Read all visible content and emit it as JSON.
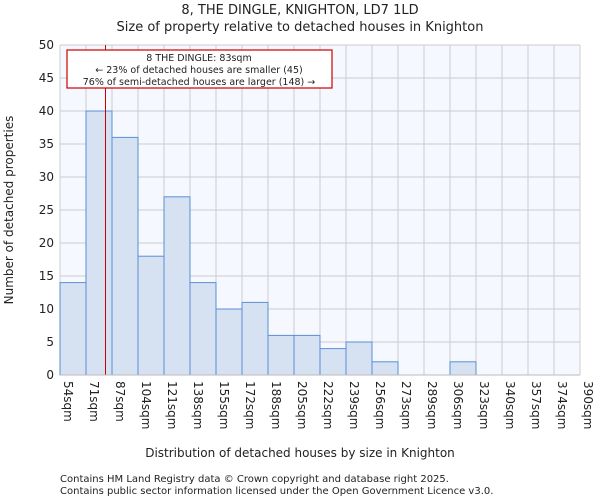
{
  "chart_data": {
    "type": "bar",
    "title": "8, THE DINGLE, KNIGHTON, LD7 1LD",
    "subtitle": "Size of property relative to detached houses in Knighton",
    "xlabel": "Distribution of detached houses by size in Knighton",
    "ylabel": "Number of detached properties",
    "ylim": [
      0,
      50
    ],
    "yticks": [
      0,
      5,
      10,
      15,
      20,
      25,
      30,
      35,
      40,
      45,
      50
    ],
    "bin_edges": [
      54,
      71,
      87,
      104,
      121,
      138,
      155,
      172,
      188,
      205,
      222,
      239,
      256,
      273,
      289,
      306,
      323,
      340,
      357,
      374,
      390
    ],
    "tick_labels": [
      "54sqm",
      "71sqm",
      "87sqm",
      "104sqm",
      "121sqm",
      "138sqm",
      "155sqm",
      "172sqm",
      "188sqm",
      "205sqm",
      "222sqm",
      "239sqm",
      "256sqm",
      "273sqm",
      "289sqm",
      "306sqm",
      "323sqm",
      "340sqm",
      "357sqm",
      "374sqm",
      "390sqm"
    ],
    "values": [
      14,
      40,
      36,
      18,
      27,
      14,
      10,
      11,
      6,
      6,
      4,
      5,
      2,
      0,
      0,
      2,
      0,
      0,
      0,
      0
    ],
    "grid": true,
    "marker": {
      "value": 83,
      "color": "#cc0000"
    },
    "annotation": {
      "line1": "8 THE DINGLE: 83sqm",
      "line2": "← 23% of detached houses are smaller (45)",
      "line3": "76% of semi-detached houses are larger (148) →"
    },
    "colors": {
      "bar_fill": "#d6e1f2",
      "bar_stroke": "#5b8fd6",
      "plot_bg": "#f5f8fe",
      "grid": "#cccccc"
    }
  },
  "footer": {
    "line1": "Contains HM Land Registry data © Crown copyright and database right 2025.",
    "line2": "Contains public sector information licensed under the Open Government Licence v3.0."
  }
}
